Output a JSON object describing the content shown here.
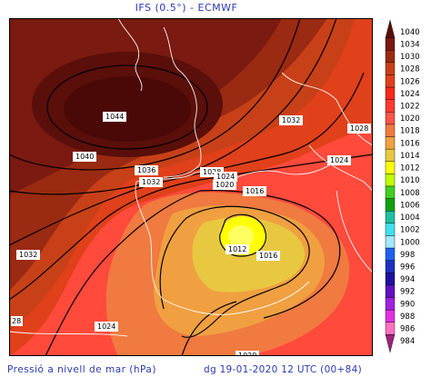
{
  "header": {
    "title": "IFS (0.5°)  -  ECMWF"
  },
  "footer": {
    "variable": "Pressió a nivell de mar (hPa)",
    "valid_time": "dg 19-01-2020 12 UTC (00+84)"
  },
  "map_labels": {
    "l1044": "1044",
    "l1040": "1040",
    "l1036": "1036",
    "l1032a": "1032",
    "l1032b": "1032",
    "l1032c": "1032",
    "l1028a": "1028",
    "l1028b": "1028",
    "l1024a": "1024",
    "l1024b": "1024",
    "l1024c": "1024",
    "l1020": "1020",
    "l1016a": "1016",
    "l1016b": "1016",
    "l1012": "1012",
    "l28": "28",
    "l_partial": "1020"
  },
  "legend": {
    "levels": [
      {
        "label": "1040",
        "color": "#5a0f0a"
      },
      {
        "label": "1034",
        "color": "#7a1a10"
      },
      {
        "label": "1030",
        "color": "#9a2a12"
      },
      {
        "label": "1028",
        "color": "#c84018"
      },
      {
        "label": "1026",
        "color": "#e0401a"
      },
      {
        "label": "1024",
        "color": "#f52a1a"
      },
      {
        "label": "1022",
        "color": "#ff3a30"
      },
      {
        "label": "1020",
        "color": "#ff5448"
      },
      {
        "label": "1018",
        "color": "#f07a40"
      },
      {
        "label": "1016",
        "color": "#f0a040"
      },
      {
        "label": "1014",
        "color": "#e8c840"
      },
      {
        "label": "1012",
        "color": "#ffff00"
      },
      {
        "label": "1010",
        "color": "#bfff00"
      },
      {
        "label": "1008",
        "color": "#40d020"
      },
      {
        "label": "1006",
        "color": "#10a010"
      },
      {
        "label": "1004",
        "color": "#20c0a0"
      },
      {
        "label": "1002",
        "color": "#40e0f0"
      },
      {
        "label": "1000",
        "color": "#a0e8ff"
      },
      {
        "label": "998",
        "color": "#2060f0"
      },
      {
        "label": "996",
        "color": "#2030c0"
      },
      {
        "label": "994",
        "color": "#2010a0"
      },
      {
        "label": "992",
        "color": "#6010c0"
      },
      {
        "label": "990",
        "color": "#a020e0"
      },
      {
        "label": "988",
        "color": "#e030e0"
      },
      {
        "label": "986",
        "color": "#ff70c0"
      },
      {
        "label": "984",
        "color": "#a0207a"
      }
    ]
  }
}
